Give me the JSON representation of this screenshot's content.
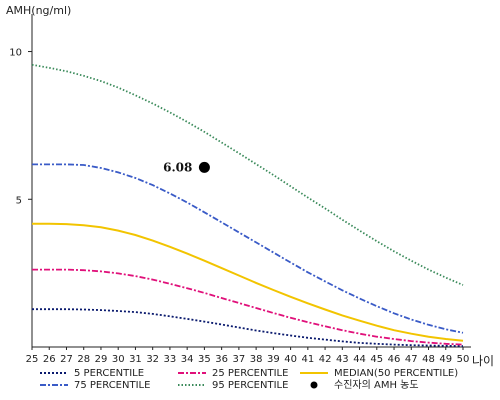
{
  "chart_data": {
    "type": "line",
    "ylabel": "AMH(ng/ml)",
    "xlabel": "나이",
    "xlim": [
      25,
      50
    ],
    "ylim": [
      0,
      11
    ],
    "x": [
      25,
      26,
      27,
      28,
      29,
      30,
      31,
      32,
      33,
      34,
      35,
      36,
      37,
      38,
      39,
      40,
      41,
      42,
      43,
      44,
      45,
      46,
      47,
      48,
      49,
      50
    ],
    "x_ticks": [
      "25",
      "26",
      "27",
      "28",
      "29",
      "30",
      "31",
      "32",
      "33",
      "34",
      "35",
      "36",
      "37",
      "38",
      "39",
      "40",
      "41",
      "42",
      "43",
      "44",
      "45",
      "46",
      "47",
      "48",
      "49",
      "50"
    ],
    "y_ticks": [
      {
        "value": 5,
        "label": "5"
      },
      {
        "value": 10,
        "label": "10"
      }
    ],
    "series": [
      {
        "name": "5 PERCENTILE",
        "key": "p5",
        "color": "#0a1a6e",
        "dash": "2,2",
        "values": [
          1.28,
          1.28,
          1.28,
          1.27,
          1.25,
          1.22,
          1.18,
          1.12,
          1.04,
          0.95,
          0.86,
          0.76,
          0.66,
          0.56,
          0.47,
          0.39,
          0.31,
          0.25,
          0.19,
          0.14,
          0.11,
          0.08,
          0.06,
          0.05,
          0.04,
          0.03
        ]
      },
      {
        "name": "25 PERCENTILE",
        "key": "p25",
        "color": "#e0107a",
        "dash": "6,2,2,2",
        "values": [
          2.62,
          2.62,
          2.62,
          2.6,
          2.56,
          2.49,
          2.4,
          2.28,
          2.14,
          1.99,
          1.83,
          1.66,
          1.49,
          1.32,
          1.15,
          0.99,
          0.84,
          0.7,
          0.57,
          0.45,
          0.35,
          0.27,
          0.2,
          0.15,
          0.11,
          0.08
        ]
      },
      {
        "name": "MEDIAN(50 PERCENTILE)",
        "key": "p50",
        "color": "#f2c400",
        "dash": "",
        "values": [
          4.17,
          4.17,
          4.16,
          4.12,
          4.05,
          3.94,
          3.79,
          3.6,
          3.39,
          3.16,
          2.92,
          2.67,
          2.42,
          2.17,
          1.93,
          1.7,
          1.48,
          1.27,
          1.07,
          0.89,
          0.72,
          0.57,
          0.45,
          0.35,
          0.27,
          0.21
        ]
      },
      {
        "name": "75 PERCENTILE",
        "key": "p75",
        "color": "#3a5bc7",
        "dash": "6,2,2,2",
        "values": [
          6.18,
          6.18,
          6.18,
          6.16,
          6.06,
          5.91,
          5.72,
          5.48,
          5.2,
          4.89,
          4.56,
          4.22,
          3.88,
          3.54,
          3.2,
          2.86,
          2.53,
          2.22,
          1.92,
          1.64,
          1.38,
          1.14,
          0.93,
          0.75,
          0.6,
          0.48
        ]
      },
      {
        "name": "95 PERCENTILE",
        "key": "p95",
        "color": "#3a8a5a",
        "dash": "1.5,2",
        "values": [
          9.55,
          9.45,
          9.33,
          9.18,
          9.0,
          8.78,
          8.52,
          8.24,
          7.94,
          7.62,
          7.28,
          6.92,
          6.56,
          6.19,
          5.82,
          5.44,
          5.06,
          4.69,
          4.31,
          3.94,
          3.58,
          3.24,
          2.92,
          2.62,
          2.35,
          2.1
        ]
      }
    ],
    "highlight_point": {
      "name": "수진자의 AMH 농도",
      "x": 35,
      "y": 6.08,
      "label": "6.08",
      "color": "#000000"
    },
    "legend": {
      "placement": "bottom",
      "entries": [
        {
          "key": "p5",
          "label": "5 PERCENTILE"
        },
        {
          "key": "p25",
          "label": "25 PERCENTILE"
        },
        {
          "key": "p50",
          "label": "MEDIAN(50 PERCENTILE)"
        },
        {
          "key": "p75",
          "label": "75 PERCENTILE"
        },
        {
          "key": "p95",
          "label": "95 PERCENTILE"
        },
        {
          "key": "point",
          "label": "수진자의 AMH 농도"
        }
      ]
    },
    "grid": false
  }
}
